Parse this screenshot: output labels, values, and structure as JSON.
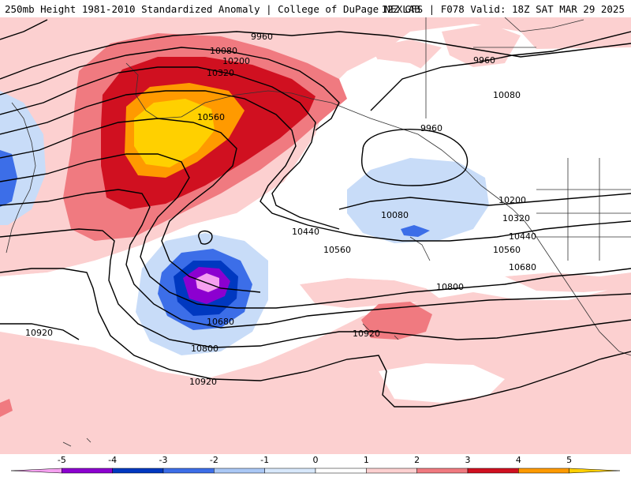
{
  "header": {
    "left": "250mb Height 1981-2010 Standardized Anomaly | College of DuPage NEXLAB",
    "right": "12Z GFS | F078 Valid: 18Z SAT MAR 29 2025"
  },
  "contour_labels": {
    "h9960_a": "9960",
    "h9960_b": "9960",
    "h9960_c": "9960",
    "h10080_a": "10080",
    "h10080_b": "10080",
    "h10080_c": "10080",
    "h10200_a": "10200",
    "h10200_b": "10200",
    "h10320_a": "10320",
    "h10320_b": "10320",
    "h10440_a": "10440",
    "h10440_b": "10440",
    "h10560_a": "10560",
    "h10560_b": "10560",
    "h10560_c": "10560",
    "h10680_a": "10680",
    "h10680_b": "10680",
    "h10800_a": "10800",
    "h10800_b": "10800",
    "h10920_a": "10920",
    "h10920_b": "10920",
    "h10920_c": "10920"
  },
  "colorbar": {
    "ticks": [
      "-5",
      "-4",
      "-3",
      "-2",
      "-1",
      "0",
      "1",
      "2",
      "3",
      "4",
      "5"
    ],
    "colors": [
      "#f5a0f0",
      "#8c00d0",
      "#0038c0",
      "#3c6ee8",
      "#aac8f5",
      "#d8e8fb",
      "#ffffff",
      "#fcd0d0",
      "#f07a80",
      "#d01020",
      "#ff9a00",
      "#ffd000"
    ]
  }
}
